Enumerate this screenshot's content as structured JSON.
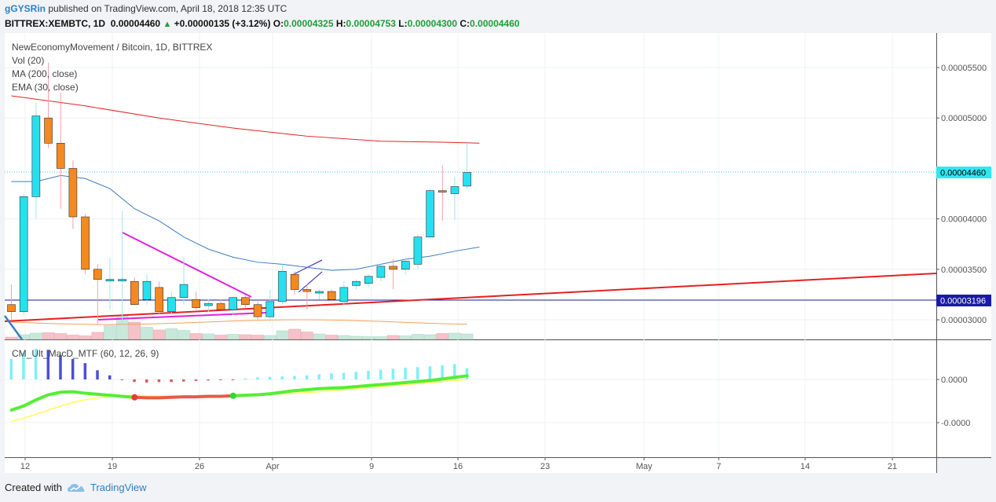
{
  "header": {
    "user": "gGYSRin",
    "published_text": "published on TradingView.com, April 18, 2018 12:35 UTC",
    "symbol": "BITTREX:XEMBTC, 1D",
    "last": "0.00004460",
    "change": "+0.00000135 (+3.12%)",
    "o_label": "O:",
    "o_value": "0.00004325",
    "h_label": "H:",
    "h_value": "0.00004753",
    "l_label": "L:",
    "l_value": "0.00004300",
    "c_label": "C:",
    "c_value": "0.00004460"
  },
  "legend": {
    "title": "NewEconomyMovement / Bitcoin, 1D, BITTREX",
    "vol": "Vol (20)",
    "ma": "MA (200, close)",
    "ema": "EMA (30, close)",
    "macd": "CM_Ult_MacD_MTF (60, 12, 26, 9)"
  },
  "price_axis": {
    "labels": [
      "0.00005500",
      "0.00005000",
      "0.00004000",
      "0.00003500",
      "0.00003000"
    ],
    "current_tag": "0.00004460",
    "line_tag": "0.00003196"
  },
  "macd_axis": {
    "labels": [
      "0.0000",
      "-0.0000"
    ]
  },
  "time_axis": {
    "labels": [
      "12",
      "19",
      "26",
      "Apr",
      "9",
      "16",
      "23",
      "May",
      "7",
      "14",
      "21"
    ]
  },
  "footer": {
    "created_with": "Created with",
    "brand": "TradingView"
  },
  "colors": {
    "up": "#26e0f0",
    "down": "#f5891f",
    "ma200": "#e52020",
    "ema30": "#3a7dc2",
    "trend_red": "#e52020",
    "trend_magenta": "#e020e0",
    "hline": "#1a1a9e",
    "macd_line": "#55ee33",
    "signal_line": "#ffff55",
    "tag_current": "#2ee8f2",
    "tag_line": "#1a1aa8"
  },
  "chart_data": {
    "type": "candlestick",
    "x_unit": "date (daily, 2018)",
    "candles": [
      {
        "d": "2018-03-10",
        "o": 3.15,
        "h": 3.35,
        "l": 3.0,
        "c": 3.08
      },
      {
        "d": "2018-03-11",
        "o": 3.08,
        "h": 4.25,
        "l": 3.05,
        "c": 4.22
      },
      {
        "d": "2018-03-12",
        "o": 4.22,
        "h": 5.15,
        "l": 4.0,
        "c": 5.02
      },
      {
        "d": "2018-03-13",
        "o": 5.0,
        "h": 5.55,
        "l": 4.7,
        "c": 4.75
      },
      {
        "d": "2018-03-14",
        "o": 4.75,
        "h": 5.25,
        "l": 4.1,
        "c": 4.5
      },
      {
        "d": "2018-03-15",
        "o": 4.5,
        "h": 4.58,
        "l": 3.9,
        "c": 4.02
      },
      {
        "d": "2018-03-16",
        "o": 4.02,
        "h": 4.05,
        "l": 3.45,
        "c": 3.5
      },
      {
        "d": "2018-03-17",
        "o": 3.5,
        "h": 3.55,
        "l": 2.95,
        "c": 3.4
      },
      {
        "d": "2018-03-18",
        "o": 3.4,
        "h": 3.62,
        "l": 3.1,
        "c": 3.4
      },
      {
        "d": "2018-03-19",
        "o": 3.4,
        "h": 4.08,
        "l": 2.95,
        "c": 3.4
      },
      {
        "d": "2018-03-20",
        "o": 3.38,
        "h": 3.42,
        "l": 3.15,
        "c": 3.15
      },
      {
        "d": "2018-03-21",
        "o": 3.2,
        "h": 3.45,
        "l": 3.15,
        "c": 3.38
      },
      {
        "d": "2018-03-22",
        "o": 3.32,
        "h": 3.38,
        "l": 3.05,
        "c": 3.08
      },
      {
        "d": "2018-03-23",
        "o": 3.08,
        "h": 3.28,
        "l": 3.05,
        "c": 3.22
      },
      {
        "d": "2018-03-24",
        "o": 3.22,
        "h": 3.62,
        "l": 3.15,
        "c": 3.35
      },
      {
        "d": "2018-03-25",
        "o": 3.2,
        "h": 3.28,
        "l": 3.1,
        "c": 3.12
      },
      {
        "d": "2018-03-26",
        "o": 3.14,
        "h": 3.2,
        "l": 3.08,
        "c": 3.16
      },
      {
        "d": "2018-03-27",
        "o": 3.16,
        "h": 3.2,
        "l": 3.1,
        "c": 3.1
      },
      {
        "d": "2018-03-28",
        "o": 3.1,
        "h": 3.22,
        "l": 3.05,
        "c": 3.22
      },
      {
        "d": "2018-03-29",
        "o": 3.22,
        "h": 3.25,
        "l": 3.12,
        "c": 3.15
      },
      {
        "d": "2018-03-30",
        "o": 3.15,
        "h": 3.18,
        "l": 3.0,
        "c": 3.03
      },
      {
        "d": "2018-03-31",
        "o": 3.03,
        "h": 3.3,
        "l": 2.98,
        "c": 3.18
      },
      {
        "d": "2018-04-01",
        "o": 3.18,
        "h": 3.55,
        "l": 3.15,
        "c": 3.48
      },
      {
        "d": "2018-04-02",
        "o": 3.45,
        "h": 3.48,
        "l": 3.25,
        "c": 3.3
      },
      {
        "d": "2018-04-03",
        "o": 3.3,
        "h": 3.35,
        "l": 3.1,
        "c": 3.28
      },
      {
        "d": "2018-04-04",
        "o": 3.27,
        "h": 3.3,
        "l": 3.2,
        "c": 3.28
      },
      {
        "d": "2018-04-05",
        "o": 3.28,
        "h": 3.3,
        "l": 3.18,
        "c": 3.2
      },
      {
        "d": "2018-04-06",
        "o": 3.18,
        "h": 3.38,
        "l": 3.15,
        "c": 3.32
      },
      {
        "d": "2018-04-07",
        "o": 3.34,
        "h": 3.4,
        "l": 3.3,
        "c": 3.38
      },
      {
        "d": "2018-04-08",
        "o": 3.36,
        "h": 3.45,
        "l": 3.32,
        "c": 3.43
      },
      {
        "d": "2018-04-09",
        "o": 3.42,
        "h": 3.55,
        "l": 3.38,
        "c": 3.53
      },
      {
        "d": "2018-04-10",
        "o": 3.53,
        "h": 3.6,
        "l": 3.3,
        "c": 3.5
      },
      {
        "d": "2018-04-11",
        "o": 3.5,
        "h": 3.62,
        "l": 3.45,
        "c": 3.58
      },
      {
        "d": "2018-04-12",
        "o": 3.55,
        "h": 3.85,
        "l": 3.5,
        "c": 3.82
      },
      {
        "d": "2018-04-13",
        "o": 3.82,
        "h": 4.3,
        "l": 3.8,
        "c": 4.28
      },
      {
        "d": "2018-04-14",
        "o": 4.28,
        "h": 4.53,
        "l": 3.98,
        "c": 4.27
      },
      {
        "d": "2018-04-15",
        "o": 4.25,
        "h": 4.42,
        "l": 3.99,
        "c": 4.32
      },
      {
        "d": "2018-04-16",
        "o": 4.325,
        "h": 4.753,
        "l": 4.3,
        "c": 4.46
      }
    ],
    "volume_bars": [
      12,
      24,
      32,
      34,
      30,
      22,
      18,
      36,
      70,
      120,
      88,
      62,
      48,
      54,
      46,
      30,
      28,
      22,
      26,
      24,
      22,
      20,
      44,
      52,
      38,
      28,
      22,
      20,
      16,
      14,
      14,
      20,
      18,
      26,
      24,
      30,
      32,
      28
    ],
    "ma200": [
      [
        0,
        5.22
      ],
      [
        6,
        5.12
      ],
      [
        12,
        5.0
      ],
      [
        18,
        4.9
      ],
      [
        24,
        4.82
      ],
      [
        30,
        4.77
      ],
      [
        35,
        4.76
      ],
      [
        38,
        4.75
      ]
    ],
    "ema30": [
      [
        0,
        4.37
      ],
      [
        2,
        4.37
      ],
      [
        4,
        4.43
      ],
      [
        6,
        4.4
      ],
      [
        8,
        4.3
      ],
      [
        10,
        4.1
      ],
      [
        12,
        3.98
      ],
      [
        14,
        3.82
      ],
      [
        16,
        3.7
      ],
      [
        18,
        3.62
      ],
      [
        20,
        3.57
      ],
      [
        22,
        3.55
      ],
      [
        24,
        3.52
      ],
      [
        26,
        3.49
      ],
      [
        28,
        3.5
      ],
      [
        30,
        3.55
      ],
      [
        32,
        3.6
      ],
      [
        34,
        3.63
      ],
      [
        36,
        3.68
      ],
      [
        38,
        3.72
      ]
    ],
    "trendline_red": {
      "from": [
        0,
        3.0
      ],
      "to": [
        72,
        3.47
      ]
    },
    "trendline_magenta": {
      "from": [
        9.5,
        3.85
      ],
      "to": [
        20,
        3.21
      ]
    },
    "support_magenta": {
      "from": [
        8,
        3.02
      ],
      "to": [
        21,
        3.08
      ]
    },
    "hline_value": 3.196,
    "macd_hist": [
      40,
      52,
      60,
      58,
      48,
      40,
      32,
      18,
      8,
      0,
      -5,
      -6,
      -5,
      -5,
      -4,
      -3,
      -2,
      -1,
      0,
      2,
      4,
      5,
      6,
      7,
      8,
      10,
      12,
      13,
      15,
      17,
      19,
      21,
      23,
      24,
      26,
      28,
      30,
      22
    ],
    "macd_line": [
      -60,
      -52,
      -40,
      -30,
      -25,
      -24,
      -27,
      -29,
      -31,
      -33,
      -35,
      -36,
      -36,
      -35,
      -34,
      -34,
      -33,
      -33,
      -32,
      -31,
      -30,
      -28,
      -25,
      -22,
      -20,
      -18,
      -17,
      -16,
      -14,
      -12,
      -10,
      -8,
      -6,
      -4,
      -2,
      1,
      4,
      7
    ],
    "signal_line": [
      -82,
      -76,
      -68,
      -60,
      -52,
      -45,
      -40,
      -36,
      -33,
      -32,
      -31,
      -32,
      -32,
      -32,
      -33,
      -33,
      -33,
      -33,
      -32,
      -31,
      -30,
      -29,
      -28,
      -27,
      -26,
      -24,
      -22,
      -20,
      -18,
      -16,
      -14,
      -12,
      -10,
      -8,
      -6,
      -4,
      -2,
      0
    ]
  }
}
